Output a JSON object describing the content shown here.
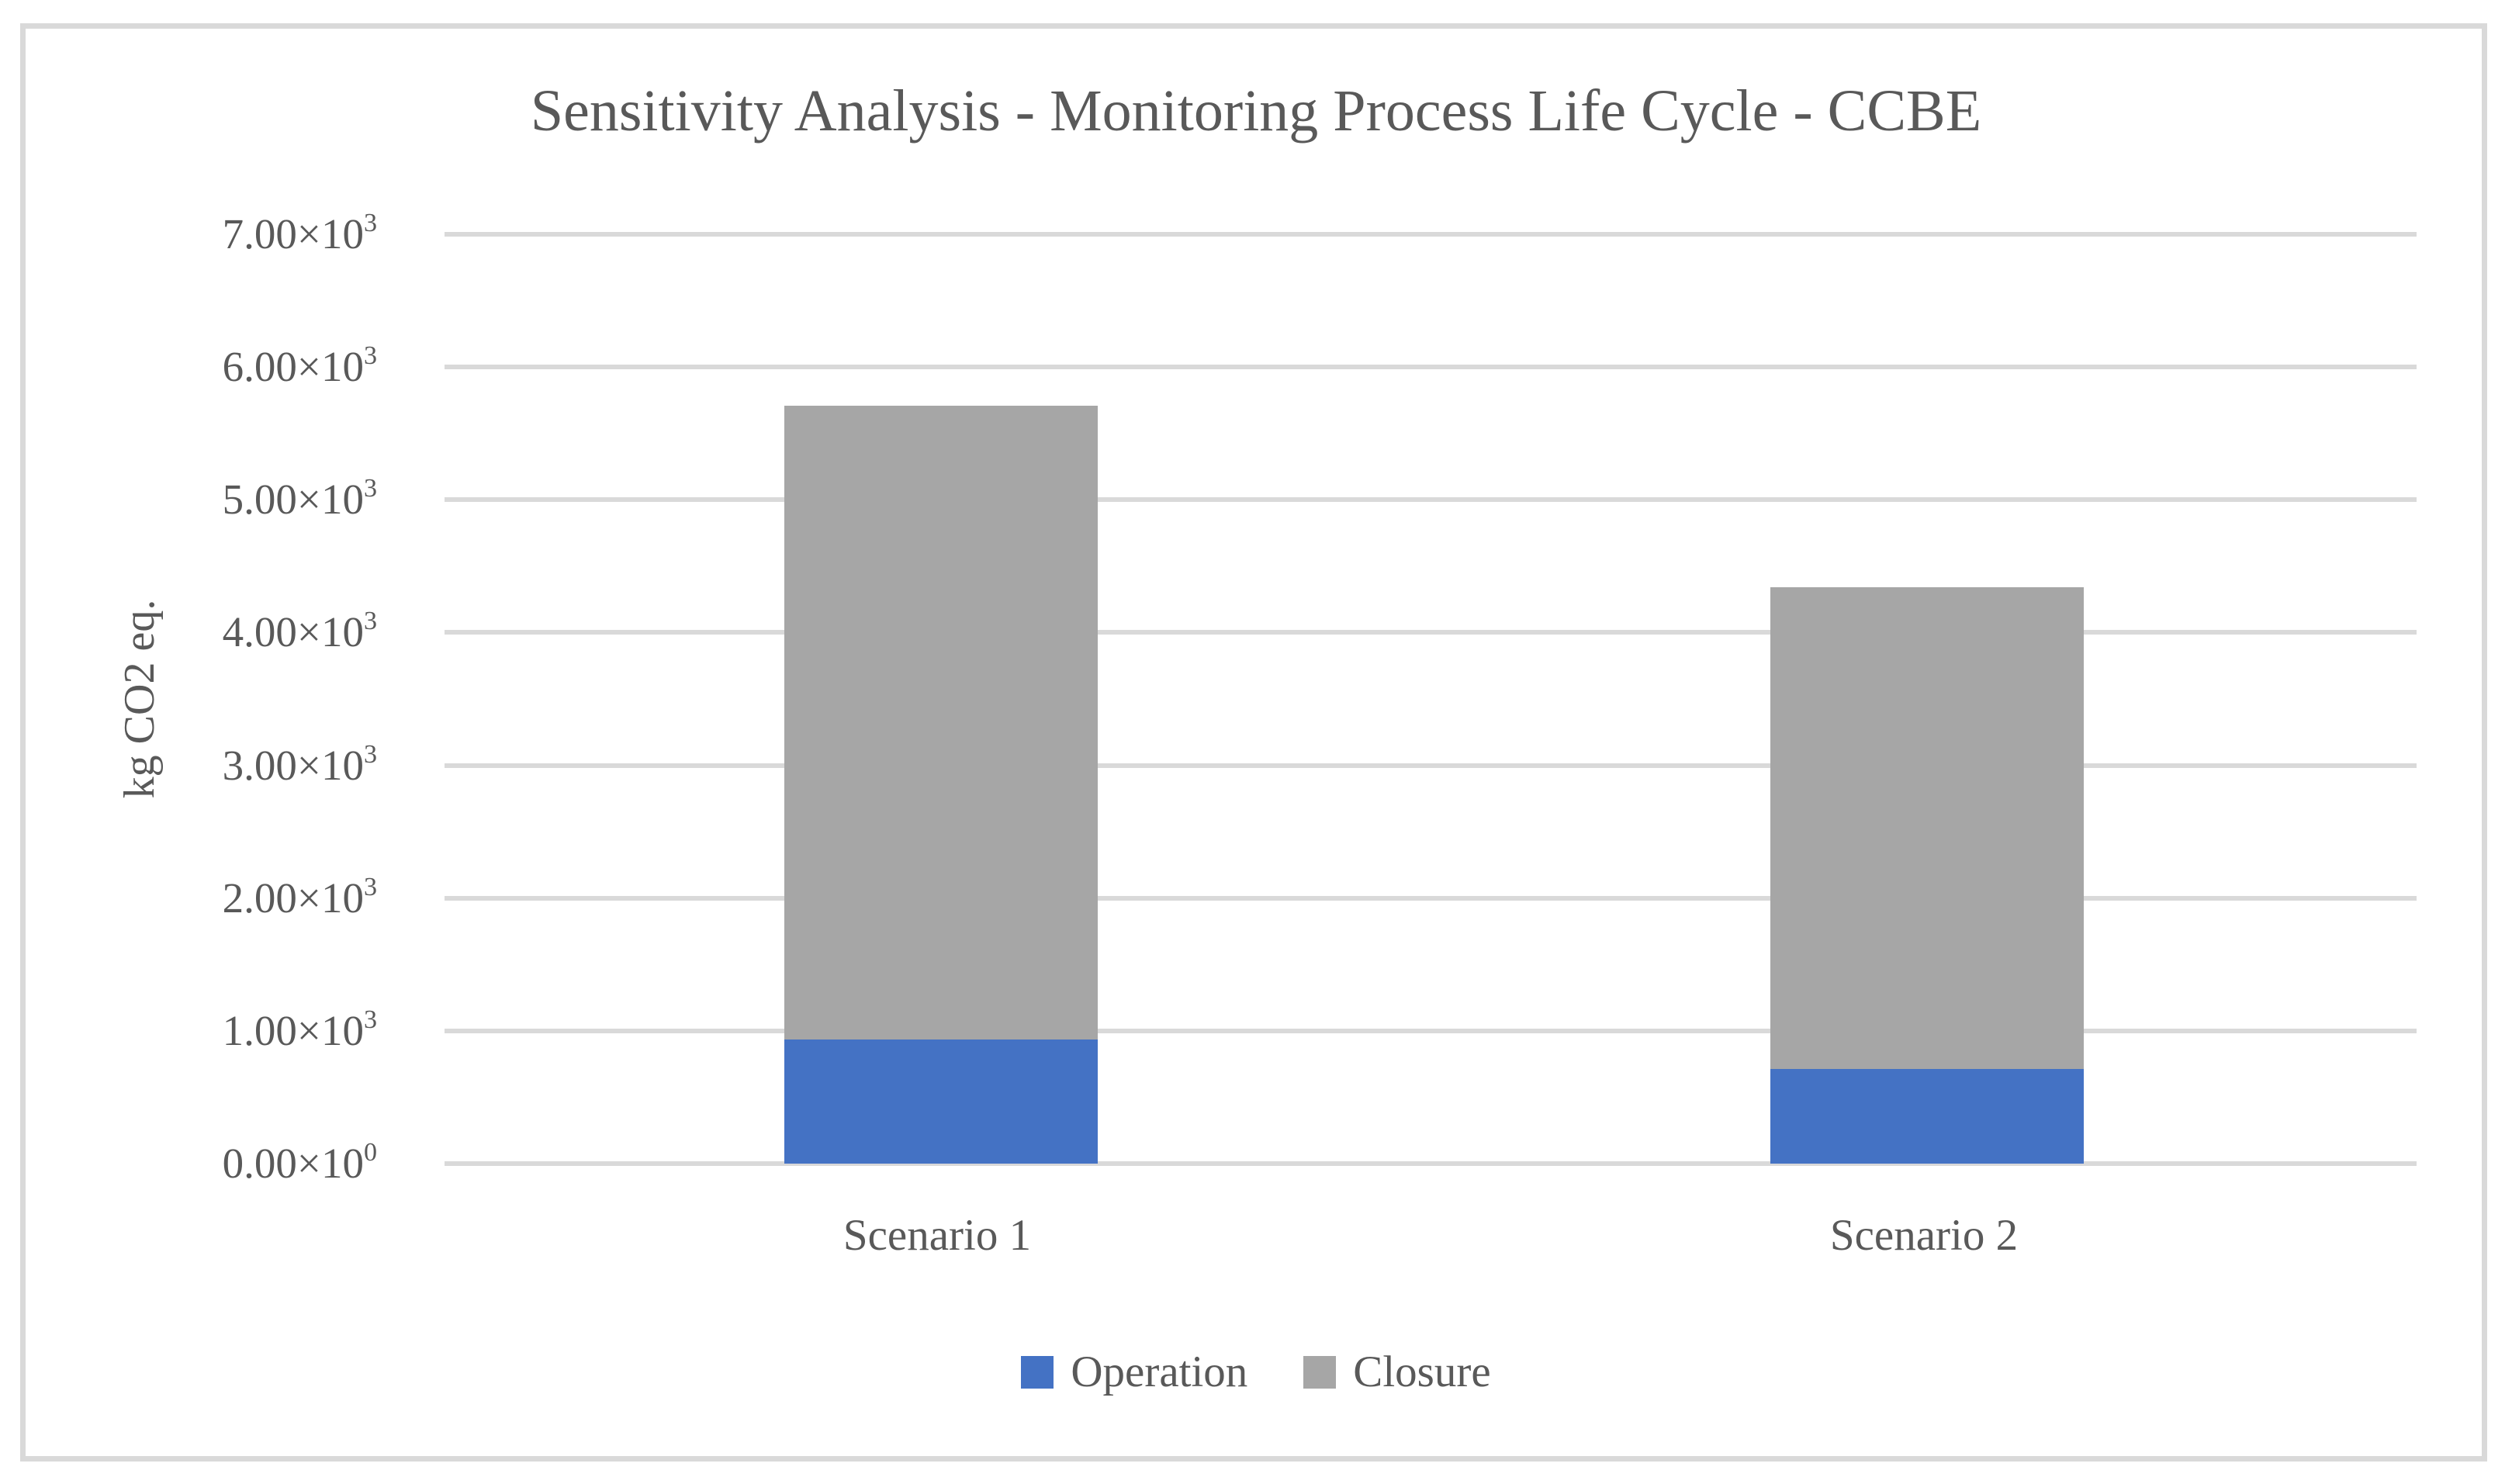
{
  "figure": {
    "title": "Sensitivity Analysis - Monitoring Process Life Cycle - CCBE",
    "y_axis_title": "kg CO2 eq."
  },
  "colors": {
    "operation": "#4472C4",
    "closure": "#A6A6A6",
    "gridline": "#D9D9D9",
    "frame_border": "#D9D9D9",
    "text": "#595959",
    "background": "#FFFFFF"
  },
  "chart_data": {
    "type": "bar",
    "stacked": true,
    "title": "Sensitivity Analysis - Monitoring Process Life Cycle - CCBE",
    "xlabel": "",
    "ylabel": "kg CO2 eq.",
    "ylim": [
      0,
      7000
    ],
    "grid": true,
    "legend_position": "bottom",
    "categories": [
      "Scenario 1",
      "Scenario 2"
    ],
    "series": [
      {
        "name": "Operation",
        "color": "#4472C4",
        "values": [
          935,
          713
        ]
      },
      {
        "name": "Closure",
        "color": "#A6A6A6",
        "values": [
          4775,
          3630
        ]
      }
    ],
    "y_ticks": [
      {
        "label": "0.00×10",
        "exp": "0",
        "value": 0
      },
      {
        "label": "1.00×10",
        "exp": "3",
        "value": 1000
      },
      {
        "label": "2.00×10",
        "exp": "3",
        "value": 2000
      },
      {
        "label": "3.00×10",
        "exp": "3",
        "value": 3000
      },
      {
        "label": "4.00×10",
        "exp": "3",
        "value": 4000
      },
      {
        "label": "5.00×10",
        "exp": "3",
        "value": 5000
      },
      {
        "label": "6.00×10",
        "exp": "3",
        "value": 6000
      },
      {
        "label": "7.00×10",
        "exp": "3",
        "value": 7000
      }
    ]
  },
  "legend": [
    {
      "label": "Operation"
    },
    {
      "label": "Closure"
    }
  ]
}
